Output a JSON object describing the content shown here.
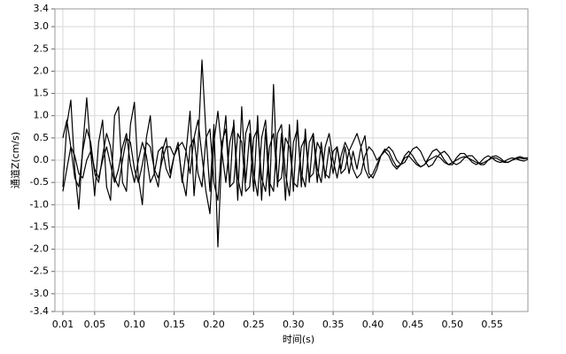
{
  "chart_data": {
    "type": "line",
    "x_label": "时间(s)",
    "y_label": "通道Z(cm/s)",
    "xlim": [
      0,
      0.595
    ],
    "ylim": [
      -3.4,
      3.4
    ],
    "grid": true,
    "xticks": [
      0.01,
      0.05,
      {
        "value": 0.1,
        "label": "0.10"
      },
      0.15,
      {
        "value": 0.2,
        "label": "0.20"
      },
      0.25,
      {
        "value": 0.3,
        "label": "0.30"
      },
      0.35,
      {
        "value": 0.4,
        "label": "0.40"
      },
      0.45,
      {
        "value": 0.5,
        "label": "0.50"
      },
      0.55
    ],
    "yticks": [
      -3.4,
      {
        "value": -3,
        "label": "-3.0"
      },
      -2.5,
      {
        "value": -2,
        "label": "-2.0"
      },
      -1.5,
      {
        "value": -1,
        "label": "-1.0"
      },
      -0.5,
      {
        "value": 0,
        "label": "0.0"
      },
      0.5,
      {
        "value": 1,
        "label": "1.0"
      },
      1.5,
      {
        "value": 2,
        "label": "2.0"
      },
      2.5,
      {
        "value": 3,
        "label": "3.0"
      },
      3.4
    ],
    "x": [
      0.01,
      0.015,
      0.02,
      0.025,
      0.03,
      0.035,
      0.04,
      0.045,
      0.05,
      0.055,
      0.06,
      0.065,
      0.07,
      0.075,
      0.08,
      0.085,
      0.09,
      0.095,
      0.1,
      0.105,
      0.11,
      0.115,
      0.12,
      0.125,
      0.13,
      0.135,
      0.14,
      0.145,
      0.15,
      0.155,
      0.16,
      0.165,
      0.17,
      0.175,
      0.18,
      0.185,
      0.19,
      0.195,
      0.2,
      0.205,
      0.21,
      0.215,
      0.22,
      0.225,
      0.23,
      0.235,
      0.24,
      0.245,
      0.25,
      0.255,
      0.26,
      0.265,
      0.27,
      0.275,
      0.28,
      0.285,
      0.29,
      0.295,
      0.3,
      0.305,
      0.31,
      0.315,
      0.32,
      0.325,
      0.33,
      0.335,
      0.34,
      0.345,
      0.35,
      0.355,
      0.36,
      0.365,
      0.37,
      0.375,
      0.38,
      0.385,
      0.39,
      0.395,
      0.4,
      0.405,
      0.41,
      0.415,
      0.42,
      0.425,
      0.43,
      0.435,
      0.44,
      0.445,
      0.45,
      0.455,
      0.46,
      0.465,
      0.47,
      0.475,
      0.48,
      0.485,
      0.49,
      0.495,
      0.5,
      0.505,
      0.51,
      0.515,
      0.52,
      0.525,
      0.53,
      0.535,
      0.54,
      0.545,
      0.55,
      0.555,
      0.56,
      0.565,
      0.57,
      0.575,
      0.58,
      0.585,
      0.59,
      0.595
    ],
    "series": [
      {
        "color": "#000000",
        "values": [
          -0.6,
          0.8,
          1.35,
          -0.2,
          -1.1,
          0.3,
          1.4,
          0.2,
          -0.8,
          0.4,
          0.9,
          -0.6,
          -0.9,
          1.0,
          1.2,
          -0.5,
          -0.7,
          0.8,
          1.3,
          -0.4,
          -1.0,
          0.5,
          1.0,
          -0.3,
          -0.6,
          0.2,
          0.5,
          -0.3,
          0.1,
          0.4,
          -0.5,
          0.2,
          1.1,
          -0.8,
          0.3,
          2.25,
          0.6,
          -0.7,
          0.8,
          -1.95,
          0.2,
          1.0,
          -0.6,
          0.9,
          -0.9,
          1.2,
          -0.5,
          0.6,
          -0.7,
          1.0,
          -0.9,
          0.7,
          -0.8,
          1.7,
          -0.6,
          0.6,
          -0.9,
          0.8,
          -0.7,
          0.9,
          -0.6,
          0.7,
          -0.5,
          0.6,
          -0.5,
          0.4,
          -0.4,
          0.3,
          -0.3,
          0.3,
          -0.2,
          0.3,
          -0.3,
          0.2,
          -0.2,
          0.3,
          0.55,
          -0.3,
          -0.4,
          -0.2,
          0.1,
          0.2,
          0.1,
          -0.1,
          -0.2,
          -0.1,
          0.05,
          0.1,
          0.0,
          -0.1,
          -0.15,
          -0.1,
          0.0,
          0.05,
          0.1,
          0.05,
          -0.05,
          -0.1,
          -0.05,
          0.0,
          0.05,
          0.08,
          0.05,
          0.0,
          -0.05,
          -0.08,
          -0.05,
          0.0,
          0.05,
          0.05,
          0.0,
          -0.05,
          -0.05,
          0.0,
          0.03,
          0.05,
          0.03,
          0.05
        ]
      },
      {
        "color": "#000000",
        "values": [
          0.5,
          0.9,
          0.3,
          -0.4,
          -0.6,
          0.2,
          0.7,
          0.4,
          -0.3,
          -0.5,
          0.1,
          0.6,
          0.3,
          -0.4,
          -0.6,
          0.0,
          0.5,
          0.4,
          -0.2,
          -0.5,
          -0.1,
          0.4,
          0.3,
          -0.2,
          -0.4,
          0.0,
          0.3,
          0.3,
          0.1,
          0.3,
          0.4,
          0.2,
          -0.3,
          0.5,
          0.9,
          0.1,
          -0.7,
          -1.2,
          0.4,
          1.1,
          0.2,
          -0.5,
          0.4,
          0.8,
          -0.4,
          -0.8,
          0.6,
          0.9,
          -0.3,
          -0.8,
          0.5,
          0.9,
          -0.5,
          -0.7,
          0.6,
          0.8,
          -0.3,
          -0.8,
          0.4,
          0.7,
          -0.3,
          -0.6,
          0.4,
          0.6,
          -0.2,
          -0.5,
          0.3,
          0.6,
          0.0,
          -0.4,
          0.1,
          0.4,
          0.2,
          -0.2,
          -0.4,
          -0.3,
          0.1,
          0.3,
          0.2,
          0.0,
          0.1,
          0.25,
          0.2,
          0.0,
          -0.15,
          -0.1,
          0.1,
          0.2,
          0.1,
          -0.05,
          -0.15,
          -0.1,
          0.05,
          0.2,
          0.25,
          0.15,
          0.0,
          -0.1,
          -0.1,
          0.05,
          0.15,
          0.15,
          0.05,
          -0.05,
          -0.1,
          -0.05,
          0.05,
          0.1,
          0.05,
          -0.02,
          -0.05,
          -0.03,
          0.02,
          0.05,
          0.03,
          0.0,
          -0.02,
          0.02
        ]
      },
      {
        "color": "#000000",
        "values": [
          -0.7,
          -0.2,
          0.3,
          0.1,
          -0.3,
          -0.4,
          0.0,
          0.2,
          -0.2,
          -0.4,
          0.0,
          0.3,
          -0.1,
          -0.5,
          -0.2,
          0.3,
          0.6,
          -0.1,
          -0.5,
          0.0,
          0.4,
          0.1,
          -0.5,
          -0.3,
          0.2,
          0.3,
          -0.2,
          -0.4,
          0.1,
          0.3,
          -0.4,
          -0.8,
          0.3,
          0.5,
          -0.3,
          -0.6,
          0.5,
          0.7,
          -0.5,
          -0.9,
          0.4,
          0.7,
          -0.6,
          -0.5,
          0.6,
          0.4,
          -0.7,
          -0.6,
          0.5,
          0.7,
          -0.4,
          -0.7,
          0.3,
          0.6,
          -0.5,
          -0.4,
          0.5,
          0.3,
          -0.5,
          -0.6,
          0.3,
          0.5,
          -0.4,
          -0.3,
          0.4,
          0.2,
          -0.3,
          -0.4,
          0.2,
          0.3,
          -0.3,
          -0.2,
          0.2,
          0.4,
          0.6,
          0.3,
          -0.2,
          -0.4,
          -0.3,
          -0.1,
          0.1,
          0.2,
          0.3,
          0.2,
          0.0,
          -0.1,
          -0.05,
          0.1,
          0.25,
          0.3,
          0.2,
          0.0,
          -0.15,
          -0.1,
          0.05,
          0.15,
          0.2,
          0.1,
          -0.05,
          -0.1,
          -0.05,
          0.05,
          0.1,
          0.1,
          0.0,
          -0.1,
          -0.1,
          0.0,
          0.08,
          0.1,
          0.05,
          -0.03,
          -0.05,
          0.0,
          0.05,
          0.08,
          0.05,
          0.05
        ]
      }
    ]
  }
}
